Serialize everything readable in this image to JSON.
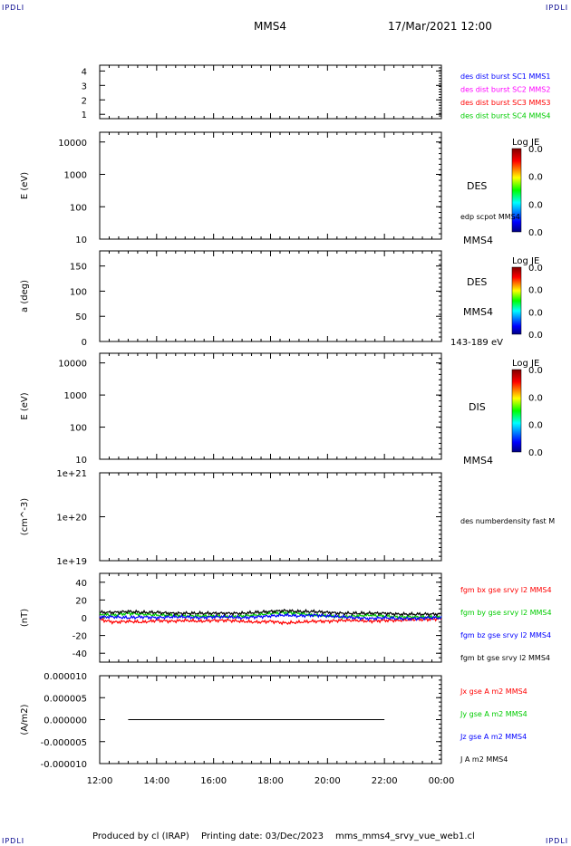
{
  "corners": {
    "top_left": "IPDLI",
    "top_right": "IPDLI",
    "bottom_left": "IPDLI",
    "bottom_right": "IPDLI"
  },
  "header": {
    "spacecraft": "MMS4",
    "date": "17/Mar/2021 12:00"
  },
  "footer": {
    "producer": "Produced by cl (IRAP)",
    "printing": "Printing date: 03/Dec/2023",
    "file": "mms_mms4_srvy_vue_web1.cl"
  },
  "colors": {
    "mms1": "#0000ff",
    "mms2": "#ff00ff",
    "mms3": "#ff0000",
    "mms4": "#00cc00",
    "black": "#000000"
  },
  "chart_data": [
    {
      "type": "line",
      "yticks": [
        "4",
        "3",
        "2",
        "1"
      ],
      "ylim": [
        0.7,
        4.4
      ],
      "xlabel": "",
      "series": [
        {
          "name": "des dist burst SC1 MMS1",
          "color": "#0000ff",
          "values": []
        },
        {
          "name": "des dist burst SC2 MMS2",
          "color": "#ff00ff",
          "values": []
        },
        {
          "name": "des dist burst SC3 MMS3",
          "color": "#ff0000",
          "values": []
        },
        {
          "name": "des dist burst SC4 MMS4",
          "color": "#00cc00",
          "values": []
        }
      ]
    },
    {
      "type": "heatmap",
      "ylabel": "E (eV)",
      "yticks": [
        "10000",
        "1000",
        "100",
        "10"
      ],
      "yscale": "log",
      "ylim": [
        10,
        20000
      ],
      "labels": [
        "DES",
        "edp scpot MMS4",
        "MMS4"
      ],
      "colorbar": {
        "title": "Log JE",
        "ticks": [
          "0.0",
          "0.0",
          "0.0",
          "0.0"
        ]
      }
    },
    {
      "type": "heatmap",
      "ylabel": "a (deg)",
      "yticks": [
        "150",
        "100",
        "50",
        "0"
      ],
      "ylim": [
        0,
        180
      ],
      "labels": [
        "DES",
        "MMS4",
        "143-189 eV"
      ],
      "colorbar": {
        "title": "Log JE",
        "ticks": [
          "0.0",
          "0.0",
          "0.0",
          "0.0"
        ]
      }
    },
    {
      "type": "heatmap",
      "ylabel": "E (eV)",
      "yticks": [
        "10000",
        "1000",
        "100",
        "10"
      ],
      "yscale": "log",
      "ylim": [
        10,
        20000
      ],
      "labels": [
        "DIS",
        "MMS4"
      ],
      "colorbar": {
        "title": "Log JE",
        "ticks": [
          "0.0",
          "0.0",
          "0.0",
          "0.0"
        ]
      }
    },
    {
      "type": "line",
      "ylabel": "(cm^-3)",
      "yticks": [
        "1e+21",
        "1e+20",
        "1e+19"
      ],
      "yscale": "log",
      "ylim": [
        1e+19,
        1e+21
      ],
      "series": [
        {
          "name": "des numberdensity fast M",
          "color": "#000000",
          "values": []
        }
      ]
    },
    {
      "type": "line",
      "ylabel": "(nT)",
      "yticks": [
        "40",
        "20",
        "0",
        "-20",
        "-40"
      ],
      "ylim": [
        -50,
        50
      ],
      "x": [
        12,
        12.5,
        13,
        13.5,
        14,
        14.5,
        15,
        15.5,
        16,
        16.5,
        17,
        17.5,
        18,
        18.5,
        19,
        19.5,
        20,
        20.5,
        21,
        21.5,
        22,
        22.5,
        23,
        23.5,
        24
      ],
      "series": [
        {
          "name": "fgm bx gse srvy l2 MMS4",
          "color": "#ff0000",
          "values": [
            -2,
            -5,
            -4,
            -5,
            -3,
            -4,
            -3,
            -4,
            -3,
            -3,
            -4,
            -5,
            -4,
            -6,
            -5,
            -4,
            -4,
            -3,
            -3,
            -4,
            -3,
            -3,
            -2,
            -2,
            -1
          ]
        },
        {
          "name": "fgm by gse srvy l2 MMS4",
          "color": "#00cc00",
          "values": [
            4,
            3,
            5,
            4,
            3,
            3,
            2,
            2,
            2,
            1,
            2,
            3,
            5,
            6,
            5,
            3,
            2,
            1,
            2,
            3,
            2,
            1,
            1,
            1,
            1
          ]
        },
        {
          "name": "fgm bz gse srvy l2 MMS4",
          "color": "#0000ff",
          "values": [
            1,
            1,
            0,
            1,
            0,
            1,
            1,
            0,
            1,
            1,
            0,
            1,
            2,
            3,
            2,
            3,
            2,
            1,
            0,
            -1,
            0,
            -1,
            -1,
            0,
            0
          ]
        },
        {
          "name": "fgm bt gse srvy l2 MMS4",
          "color": "#000000",
          "values": [
            6,
            6,
            7,
            6,
            6,
            5,
            5,
            5,
            5,
            5,
            5,
            6,
            7,
            8,
            7,
            7,
            6,
            5,
            5,
            5,
            5,
            4,
            4,
            4,
            4
          ]
        }
      ]
    },
    {
      "type": "line",
      "ylabel": "(A/m2)",
      "yticks": [
        "0.000010",
        "0.000005",
        "0.000000",
        "-0.000005",
        "-0.000010"
      ],
      "ylim": [
        -1e-05,
        1e-05
      ],
      "xticks": [
        "12:00",
        "14:00",
        "16:00",
        "18:00",
        "20:00",
        "22:00",
        "00:00"
      ],
      "xlim": [
        12,
        24
      ],
      "series": [
        {
          "name": "Jx gse A m2 MMS4",
          "color": "#ff0000",
          "values": []
        },
        {
          "name": "Jy gse A m2 MMS4",
          "color": "#00cc00",
          "values": []
        },
        {
          "name": "Jz gse A m2 MMS4",
          "color": "#0000ff",
          "values": []
        },
        {
          "name": "J A m2 MMS4",
          "color": "#000000",
          "x": [
            13,
            22
          ],
          "values": [
            0.0,
            0.0
          ]
        }
      ]
    }
  ]
}
